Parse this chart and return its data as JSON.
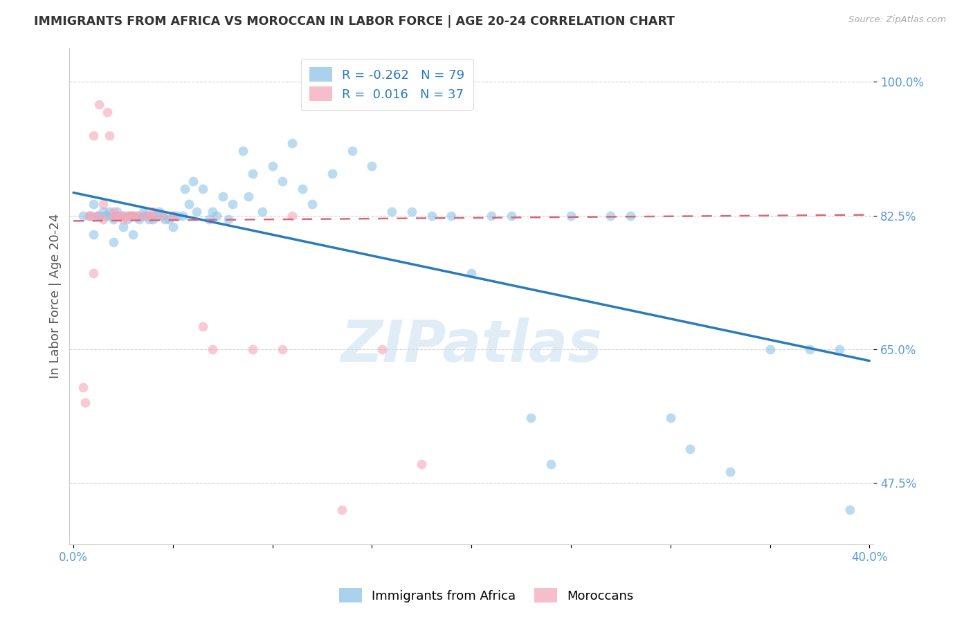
{
  "title": "IMMIGRANTS FROM AFRICA VS MOROCCAN IN LABOR FORCE | AGE 20-24 CORRELATION CHART",
  "source": "Source: ZipAtlas.com",
  "ylabel": "In Labor Force | Age 20-24",
  "legend_blue_r": "-0.262",
  "legend_blue_n": "79",
  "legend_pink_r": "0.016",
  "legend_pink_n": "37",
  "blue_color": "#8ec4e8",
  "pink_color": "#f4a7b9",
  "line_blue": "#2b7bba",
  "line_pink": "#d4697a",
  "bg_color": "#ffffff",
  "ytick_labels": [
    "100.0%",
    "82.5%",
    "65.0%",
    "47.5%"
  ],
  "ytick_vals": [
    1.0,
    0.825,
    0.65,
    0.475
  ],
  "blue_scatter_x": [
    0.005,
    0.008,
    0.01,
    0.01,
    0.012,
    0.013,
    0.015,
    0.016,
    0.018,
    0.018,
    0.02,
    0.02,
    0.022,
    0.022,
    0.025,
    0.025,
    0.027,
    0.028,
    0.03,
    0.03,
    0.032,
    0.033,
    0.035,
    0.035,
    0.037,
    0.038,
    0.04,
    0.04,
    0.042,
    0.043,
    0.045,
    0.046,
    0.048,
    0.05,
    0.05,
    0.052,
    0.055,
    0.056,
    0.058,
    0.06,
    0.062,
    0.065,
    0.068,
    0.07,
    0.072,
    0.075,
    0.078,
    0.08,
    0.085,
    0.088,
    0.09,
    0.095,
    0.1,
    0.105,
    0.11,
    0.115,
    0.12,
    0.13,
    0.14,
    0.15,
    0.16,
    0.17,
    0.18,
    0.19,
    0.2,
    0.21,
    0.22,
    0.23,
    0.24,
    0.25,
    0.27,
    0.28,
    0.3,
    0.31,
    0.33,
    0.35,
    0.37,
    0.385,
    0.39
  ],
  "blue_scatter_y": [
    0.825,
    0.825,
    0.8,
    0.84,
    0.825,
    0.825,
    0.83,
    0.825,
    0.825,
    0.83,
    0.79,
    0.82,
    0.825,
    0.83,
    0.81,
    0.825,
    0.82,
    0.825,
    0.8,
    0.825,
    0.825,
    0.82,
    0.825,
    0.83,
    0.825,
    0.82,
    0.82,
    0.825,
    0.825,
    0.83,
    0.825,
    0.82,
    0.82,
    0.81,
    0.825,
    0.825,
    0.825,
    0.86,
    0.84,
    0.87,
    0.83,
    0.86,
    0.82,
    0.83,
    0.825,
    0.85,
    0.82,
    0.84,
    0.91,
    0.85,
    0.88,
    0.83,
    0.89,
    0.87,
    0.92,
    0.86,
    0.84,
    0.88,
    0.91,
    0.89,
    0.83,
    0.83,
    0.825,
    0.825,
    0.75,
    0.825,
    0.825,
    0.56,
    0.5,
    0.825,
    0.825,
    0.825,
    0.56,
    0.52,
    0.49,
    0.65,
    0.65,
    0.65,
    0.44
  ],
  "pink_scatter_x": [
    0.005,
    0.006,
    0.008,
    0.009,
    0.01,
    0.01,
    0.012,
    0.013,
    0.015,
    0.015,
    0.017,
    0.018,
    0.02,
    0.02,
    0.022,
    0.022,
    0.025,
    0.025,
    0.027,
    0.028,
    0.03,
    0.03,
    0.032,
    0.035,
    0.038,
    0.04,
    0.04,
    0.045,
    0.05,
    0.065,
    0.07,
    0.09,
    0.105,
    0.11,
    0.135,
    0.155,
    0.175
  ],
  "pink_scatter_y": [
    0.6,
    0.58,
    0.825,
    0.825,
    0.75,
    0.93,
    0.825,
    0.97,
    0.82,
    0.84,
    0.96,
    0.93,
    0.825,
    0.83,
    0.825,
    0.825,
    0.82,
    0.825,
    0.825,
    0.825,
    0.825,
    0.825,
    0.825,
    0.825,
    0.825,
    0.825,
    0.83,
    0.825,
    0.825,
    0.68,
    0.65,
    0.65,
    0.65,
    0.825,
    0.44,
    0.65,
    0.5
  ],
  "blue_trendline_x": [
    0.0,
    0.4
  ],
  "blue_trendline_y": [
    0.855,
    0.635
  ],
  "pink_trendline_x": [
    0.0,
    0.4
  ],
  "pink_trendline_y": [
    0.818,
    0.826
  ],
  "xmin": -0.002,
  "xmax": 0.402,
  "ymin": 0.395,
  "ymax": 1.045,
  "watermark": "ZIPatlas"
}
